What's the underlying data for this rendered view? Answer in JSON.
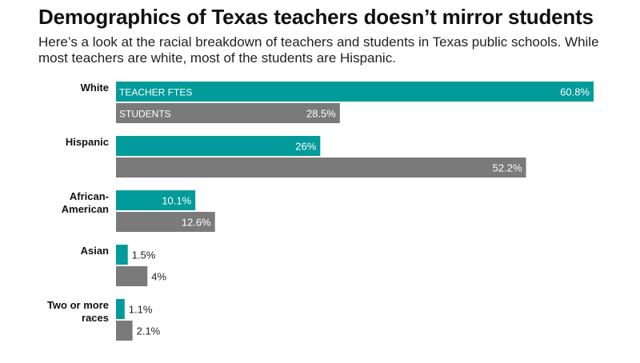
{
  "title": "Demographics of Texas teachers doesn’t mirror students",
  "subtitle": "Here’s a look at the racial breakdown of teachers and students in Texas public schools. While most teachers are white, most of the students are Hispanic.",
  "colors": {
    "teacher": "#009b9a",
    "students": "#7a7a7a"
  },
  "chart_data": {
    "type": "bar",
    "orientation": "horizontal",
    "categories": [
      [
        "White"
      ],
      [
        "Hispanic"
      ],
      [
        "African-",
        "American"
      ],
      [
        "Asian"
      ],
      [
        "Two or more",
        "races"
      ]
    ],
    "series": [
      {
        "name": "TEACHER FTES",
        "values": [
          60.8,
          26,
          10.1,
          1.5,
          1.1
        ],
        "labels": [
          "60.8%",
          "26%",
          "10.1%",
          "1.5%",
          "1.1%"
        ]
      },
      {
        "name": "STUDENTS",
        "values": [
          28.5,
          52.2,
          12.6,
          4,
          2.1
        ],
        "labels": [
          "28.5%",
          "52.2%",
          "12.6%",
          "4%",
          "2.1%"
        ]
      }
    ],
    "xlim": [
      0,
      60.8
    ],
    "grid": false,
    "legend": "series names printed inside first category bars"
  }
}
